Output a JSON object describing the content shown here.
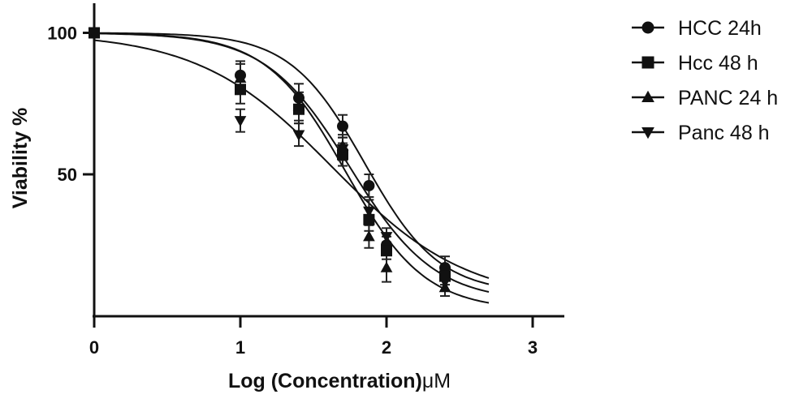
{
  "chart_data": {
    "type": "scatter",
    "xlabel": "Log (Concentration)",
    "xlabel_unit": "μM",
    "ylabel": "Viability %",
    "xlim": [
      0,
      3.2
    ],
    "ylim": [
      0,
      110
    ],
    "x_ticks": [
      0,
      1,
      2,
      3
    ],
    "x_tick_labels": [
      "0",
      "1",
      "2",
      "3"
    ],
    "y_ticks": [
      50,
      100
    ],
    "y_tick_labels": [
      "50",
      "100"
    ],
    "grid": false,
    "legend_position": "right",
    "series": [
      {
        "name": "HCC 24h",
        "marker": "circle",
        "points": [
          {
            "x": 0,
            "y": 100,
            "err": 1
          },
          {
            "x": 1,
            "y": 85,
            "err": 5
          },
          {
            "x": 1.4,
            "y": 77,
            "err": 5
          },
          {
            "x": 1.7,
            "y": 67,
            "err": 4
          },
          {
            "x": 1.88,
            "y": 46,
            "err": 4
          },
          {
            "x": 2,
            "y": 25,
            "err": 3
          },
          {
            "x": 2.4,
            "y": 17,
            "err": 4
          }
        ],
        "fit": {
          "top": 100,
          "bottom": 8,
          "logEC50": 1.85,
          "hill": 1.7
        }
      },
      {
        "name": "Hcc 48 h",
        "marker": "square",
        "points": [
          {
            "x": 0,
            "y": 100,
            "err": 1
          },
          {
            "x": 1,
            "y": 80,
            "err": 5
          },
          {
            "x": 1.4,
            "y": 73,
            "err": 5
          },
          {
            "x": 1.7,
            "y": 57,
            "err": 4
          },
          {
            "x": 1.88,
            "y": 34,
            "err": 4
          },
          {
            "x": 2,
            "y": 23,
            "err": 3
          },
          {
            "x": 2.4,
            "y": 14,
            "err": 3
          }
        ],
        "fit": {
          "top": 100,
          "bottom": 5,
          "logEC50": 1.75,
          "hill": 1.5
        }
      },
      {
        "name": "PANC 24 h",
        "marker": "triangle-up",
        "points": [
          {
            "x": 0,
            "y": 100,
            "err": 1
          },
          {
            "x": 1,
            "y": 84,
            "err": 5
          },
          {
            "x": 1.4,
            "y": 74,
            "err": 5
          },
          {
            "x": 1.7,
            "y": 60,
            "err": 4
          },
          {
            "x": 1.88,
            "y": 28,
            "err": 4
          },
          {
            "x": 2,
            "y": 17,
            "err": 5
          },
          {
            "x": 2.4,
            "y": 10,
            "err": 3
          }
        ],
        "fit": {
          "top": 100,
          "bottom": 2,
          "logEC50": 1.72,
          "hill": 1.6
        }
      },
      {
        "name": "Panc 48 h",
        "marker": "triangle-down",
        "points": [
          {
            "x": 0,
            "y": 100,
            "err": 1
          },
          {
            "x": 1,
            "y": 69,
            "err": 4
          },
          {
            "x": 1.4,
            "y": 64,
            "err": 4
          },
          {
            "x": 1.7,
            "y": 59,
            "err": 4
          },
          {
            "x": 1.88,
            "y": 37,
            "err": 4
          },
          {
            "x": 2,
            "y": 28,
            "err": 3
          },
          {
            "x": 2.4,
            "y": 12,
            "err": 3
          }
        ],
        "fit": {
          "top": 100,
          "bottom": 5,
          "logEC50": 1.63,
          "hill": 0.95
        }
      }
    ]
  }
}
